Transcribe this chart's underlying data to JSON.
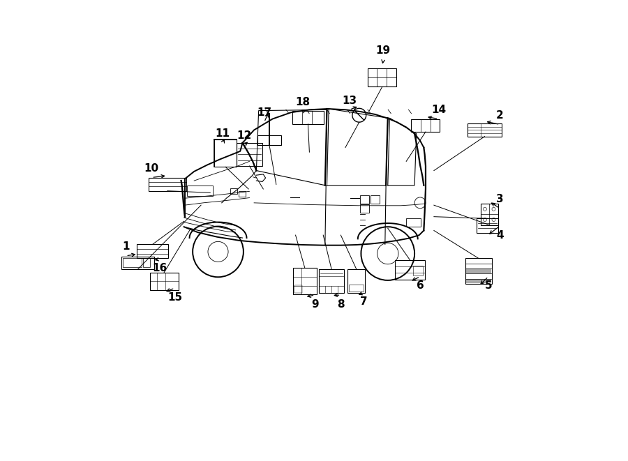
{
  "bg_color": "#ffffff",
  "line_color": "#000000",
  "fig_width": 9.0,
  "fig_height": 6.61,
  "label_items": [
    {
      "num": "1",
      "nx": 0.092,
      "ny": 0.465,
      "ix": 0.118,
      "iy": 0.43,
      "iw": 0.072,
      "ih": 0.028,
      "above": true,
      "vx": 0.255,
      "vy": 0.555
    },
    {
      "num": "2",
      "nx": 0.903,
      "ny": 0.75,
      "ix": 0.87,
      "iy": 0.718,
      "iw": 0.075,
      "ih": 0.028,
      "above": true,
      "vx": 0.76,
      "vy": 0.63
    },
    {
      "num": "3",
      "nx": 0.903,
      "ny": 0.568,
      "ix": 0.88,
      "iy": 0.535,
      "iw": 0.038,
      "ih": 0.046,
      "above": true,
      "vx": 0.76,
      "vy": 0.555
    },
    {
      "num": "4",
      "nx": 0.903,
      "ny": 0.49,
      "ix": 0.876,
      "iy": 0.51,
      "iw": 0.048,
      "ih": 0.032,
      "above": false,
      "vx": 0.76,
      "vy": 0.53
    },
    {
      "num": "5",
      "nx": 0.878,
      "ny": 0.38,
      "ix": 0.857,
      "iy": 0.412,
      "iw": 0.058,
      "ih": 0.055,
      "above": false,
      "vx": 0.76,
      "vy": 0.5
    },
    {
      "num": "6",
      "nx": 0.73,
      "ny": 0.38,
      "ix": 0.708,
      "iy": 0.415,
      "iw": 0.065,
      "ih": 0.042,
      "above": false,
      "vx": 0.66,
      "vy": 0.505
    },
    {
      "num": "7",
      "nx": 0.608,
      "ny": 0.345,
      "ix": 0.592,
      "iy": 0.39,
      "iw": 0.038,
      "ih": 0.052,
      "above": false,
      "vx": 0.558,
      "vy": 0.49
    },
    {
      "num": "8",
      "nx": 0.558,
      "ny": 0.34,
      "ix": 0.538,
      "iy": 0.39,
      "iw": 0.055,
      "ih": 0.052,
      "above": false,
      "vx": 0.52,
      "vy": 0.49
    },
    {
      "num": "9",
      "nx": 0.502,
      "ny": 0.34,
      "ix": 0.48,
      "iy": 0.39,
      "iw": 0.052,
      "ih": 0.058,
      "above": false,
      "vx": 0.46,
      "vy": 0.49
    },
    {
      "num": "10",
      "nx": 0.148,
      "ny": 0.635,
      "ix": 0.182,
      "iy": 0.6,
      "iw": 0.082,
      "ih": 0.028,
      "above": true,
      "vx": 0.275,
      "vy": 0.582
    },
    {
      "num": "11",
      "nx": 0.302,
      "ny": 0.71,
      "ix": 0.308,
      "iy": 0.668,
      "iw": 0.048,
      "ih": 0.06,
      "above": true,
      "vx": 0.358,
      "vy": 0.59
    },
    {
      "num": "12",
      "nx": 0.348,
      "ny": 0.705,
      "ix": 0.36,
      "iy": 0.665,
      "iw": 0.055,
      "ih": 0.05,
      "above": true,
      "vx": 0.39,
      "vy": 0.59
    },
    {
      "num": "13",
      "nx": 0.577,
      "ny": 0.782,
      "ix": 0.598,
      "iy": 0.75,
      "iw": 0.03,
      "ih": 0.03,
      "above": true,
      "vx": 0.568,
      "vy": 0.68
    },
    {
      "num": "14",
      "nx": 0.77,
      "ny": 0.762,
      "ix": 0.742,
      "iy": 0.728,
      "iw": 0.062,
      "ih": 0.028,
      "above": true,
      "vx": 0.7,
      "vy": 0.65
    },
    {
      "num": "15",
      "nx": 0.198,
      "ny": 0.355,
      "ix": 0.175,
      "iy": 0.39,
      "iw": 0.062,
      "ih": 0.038,
      "above": false,
      "vx": 0.23,
      "vy": 0.5
    },
    {
      "num": "16",
      "nx": 0.165,
      "ny": 0.418,
      "ix": 0.15,
      "iy": 0.455,
      "iw": 0.068,
      "ih": 0.03,
      "above": false,
      "vx": 0.218,
      "vy": 0.52
    },
    {
      "num": "17",
      "nx": 0.392,
      "ny": 0.755,
      "ix": 0.403,
      "iy": 0.72,
      "iw": 0.026,
      "ih": 0.068,
      "above": true,
      "vx": 0.418,
      "vy": 0.6
    },
    {
      "num": "18",
      "nx": 0.475,
      "ny": 0.778,
      "ix": 0.487,
      "iy": 0.745,
      "iw": 0.068,
      "ih": 0.028,
      "above": true,
      "vx": 0.49,
      "vy": 0.67
    },
    {
      "num": "19",
      "nx": 0.65,
      "ny": 0.89,
      "ix": 0.648,
      "iy": 0.832,
      "iw": 0.062,
      "ih": 0.04,
      "above": true,
      "vx": 0.62,
      "vy": 0.76
    }
  ]
}
